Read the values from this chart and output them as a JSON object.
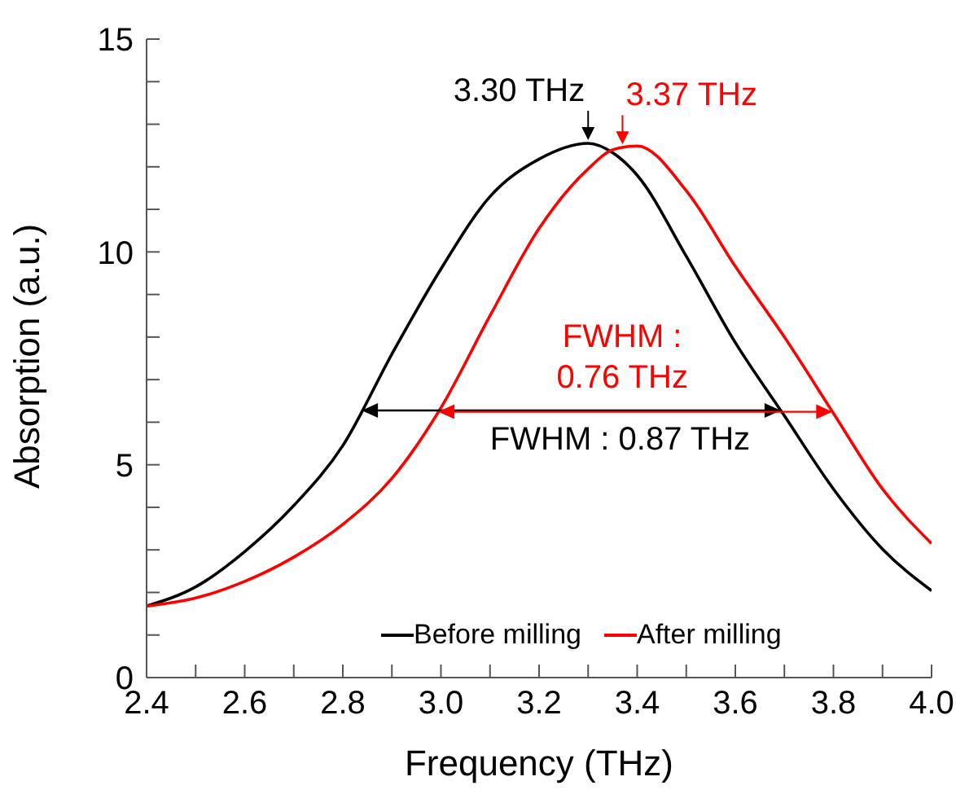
{
  "chart_data": {
    "type": "line",
    "xlabel": "Frequency (THz)",
    "ylabel": "Absorption (a.u.)",
    "x": [
      2.4,
      2.5,
      2.6,
      2.7,
      2.8,
      2.9,
      3.0,
      3.1,
      3.2,
      3.3,
      3.35,
      3.4,
      3.5,
      3.6,
      3.7,
      3.8,
      3.9,
      4.0
    ],
    "series": [
      {
        "name": "Before milling",
        "color": "#000000",
        "values": [
          1.68,
          2.13,
          2.96,
          4.04,
          5.45,
          7.6,
          9.6,
          11.3,
          12.18,
          12.55,
          12.33,
          11.8,
          9.9,
          7.87,
          6.15,
          4.43,
          3.02,
          2.04
        ]
      },
      {
        "name": "After milling",
        "color": "#ff0000",
        "values": [
          1.68,
          1.87,
          2.26,
          2.83,
          3.6,
          4.68,
          6.34,
          8.5,
          10.55,
          11.95,
          12.4,
          12.49,
          11.44,
          9.66,
          8.0,
          6.21,
          4.43,
          3.15
        ]
      }
    ],
    "annotations": [
      {
        "text": "3.30 THz",
        "x": 3.3,
        "y": 12.55
      },
      {
        "text": "3.37 THz",
        "x": 3.37,
        "y": 12.45
      },
      "FWHM : 0.76 THz",
      "FWHM : 0.87 THz"
    ],
    "xlim": [
      2.4,
      4.0
    ],
    "xticks": [
      2.4,
      {
        "value": 2.5,
        "label": null
      },
      2.6,
      {
        "value": 2.7,
        "label": null
      },
      2.8,
      {
        "value": 2.9,
        "label": null
      },
      {
        "value": 3,
        "label": "3.0"
      },
      {
        "value": 3.1,
        "label": null
      },
      3.2,
      {
        "value": 3.3,
        "label": null
      },
      3.4,
      {
        "value": 3.5,
        "label": null
      },
      3.6,
      {
        "value": 3.7,
        "label": null
      },
      3.8,
      {
        "value": 3.9,
        "label": null
      },
      {
        "value": 4,
        "label": "4.0"
      }
    ],
    "ylim": [
      0,
      15
    ],
    "yticks": [
      0,
      {
        "value": 1,
        "label": null
      },
      {
        "value": 2,
        "label": null
      },
      {
        "value": 3,
        "label": null
      },
      {
        "value": 4,
        "label": null
      },
      5,
      {
        "value": 6,
        "label": null
      },
      {
        "value": 7,
        "label": null
      },
      {
        "value": 8,
        "label": null
      },
      {
        "value": 9,
        "label": null
      },
      10,
      {
        "value": 11,
        "label": null
      },
      {
        "value": 12,
        "label": null
      },
      {
        "value": 13,
        "label": null
      },
      {
        "value": 14,
        "label": null
      },
      15
    ],
    "grid": false,
    "legend": "bottom right",
    "marker": "none",
    "line_style": "solid"
  }
}
